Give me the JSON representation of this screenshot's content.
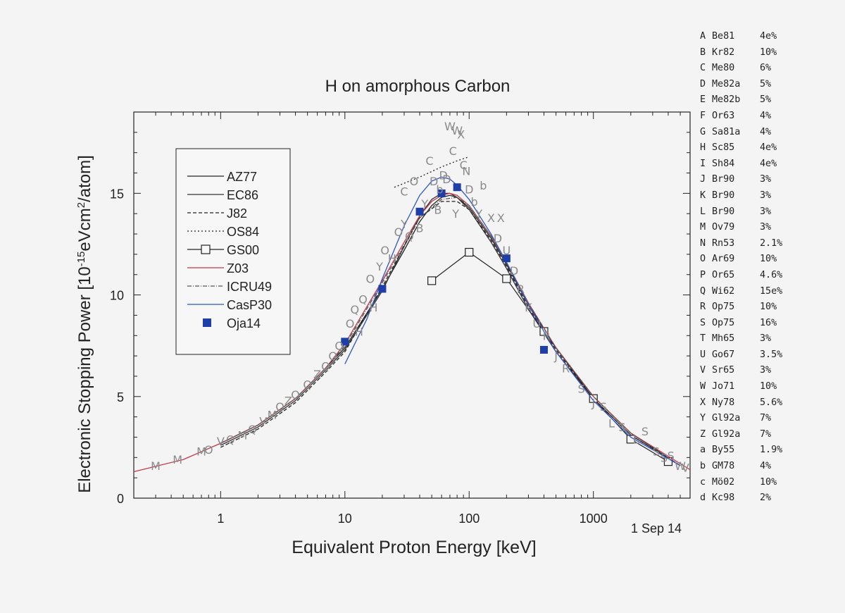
{
  "chart_data": {
    "type": "line",
    "title": "H on amorphous Carbon",
    "xlabel": "Equivalent Proton Energy [keV]",
    "ylabel_parts": [
      "Electronic Stopping Power [10",
      "-15",
      "eVcm",
      "2",
      "/atom]"
    ],
    "date_label": "1 Sep 14",
    "x_scale": "log",
    "xlim": [
      0.2,
      6000
    ],
    "ylim": [
      0,
      19
    ],
    "x_ticks": [
      1,
      10,
      100,
      1000
    ],
    "x_tick_labels": [
      "1",
      "10",
      "100",
      "1000"
    ],
    "y_ticks": [
      0,
      5,
      10,
      15
    ],
    "y_tick_labels": [
      "0",
      "5",
      "10",
      "15"
    ],
    "grid": false,
    "legend_position": "top-left",
    "series": [
      {
        "name": "AZ77",
        "style": "solid",
        "color": "#222222",
        "x": [
          1,
          2,
          4,
          7,
          10,
          20,
          30,
          40,
          50,
          60,
          70,
          80,
          100,
          150,
          200,
          300,
          500,
          1000,
          2000,
          5000
        ],
        "y": [
          2.7,
          3.6,
          4.9,
          6.4,
          7.4,
          10.3,
          12.2,
          13.6,
          14.4,
          14.8,
          14.9,
          14.8,
          14.3,
          12.8,
          11.5,
          9.5,
          7.4,
          5.0,
          3.2,
          1.6
        ]
      },
      {
        "name": "EC86",
        "style": "solid",
        "color": "#333333",
        "x": [
          1,
          2,
          4,
          7,
          10,
          20,
          30,
          40,
          50,
          60,
          70,
          80,
          100,
          150,
          200,
          300,
          500,
          1000,
          2000,
          5000
        ],
        "y": [
          2.6,
          3.5,
          4.8,
          6.3,
          7.3,
          10.2,
          12.4,
          13.9,
          14.7,
          15.0,
          15.0,
          14.8,
          14.2,
          12.6,
          11.3,
          9.3,
          7.2,
          4.9,
          3.1,
          1.6
        ]
      },
      {
        "name": "J82",
        "style": "dashed",
        "color": "#222222",
        "x": [
          1,
          2,
          4,
          7,
          10,
          20,
          40,
          60,
          80,
          100,
          150,
          200,
          300,
          500,
          1000,
          2000,
          5000
        ],
        "y": [
          2.5,
          3.4,
          4.7,
          6.2,
          7.2,
          10.4,
          13.8,
          14.6,
          14.6,
          14.2,
          12.7,
          11.4,
          9.4,
          7.3,
          4.9,
          3.1,
          1.6
        ]
      },
      {
        "name": "OS84",
        "style": "dotted",
        "color": "#222222",
        "x": [
          25,
          40,
          60,
          80,
          100
        ],
        "y": [
          15.3,
          15.8,
          16.3,
          16.6,
          16.8
        ]
      },
      {
        "name": "GS00",
        "style": "open-square",
        "color": "#222222",
        "x": [
          50,
          100,
          200,
          400,
          1000,
          2000,
          4000
        ],
        "y": [
          10.7,
          12.1,
          10.8,
          8.2,
          4.9,
          2.9,
          1.8
        ]
      },
      {
        "name": "Z03",
        "style": "solid",
        "color": "#c0394b",
        "x": [
          0.2,
          0.5,
          1,
          2,
          4,
          7,
          10,
          20,
          30,
          40,
          50,
          60,
          70,
          80,
          100,
          150,
          200,
          300,
          500,
          1000,
          2000,
          6000
        ],
        "y": [
          1.3,
          1.9,
          2.7,
          3.6,
          4.9,
          6.4,
          7.6,
          10.7,
          12.6,
          13.9,
          14.6,
          14.9,
          15.0,
          14.9,
          14.4,
          12.9,
          11.6,
          9.6,
          7.4,
          5.0,
          3.2,
          1.4
        ]
      },
      {
        "name": "ICRU49",
        "style": "dashdot",
        "color": "#555555",
        "x": [
          1,
          2,
          4,
          7,
          10,
          20,
          40,
          60,
          80,
          100,
          150,
          200,
          300,
          500,
          1000,
          2000,
          5000
        ],
        "y": [
          2.7,
          3.6,
          4.9,
          6.4,
          7.5,
          10.6,
          13.8,
          14.7,
          14.8,
          14.4,
          12.9,
          11.6,
          9.6,
          7.4,
          5.0,
          3.2,
          1.6
        ]
      },
      {
        "name": "CasP30",
        "style": "solid",
        "color": "#2f55c4",
        "x": [
          10,
          15,
          20,
          30,
          40,
          50,
          60,
          70,
          80,
          100,
          150,
          200,
          300,
          500,
          1000,
          2000,
          5000
        ],
        "y": [
          6.6,
          8.8,
          10.8,
          13.4,
          14.9,
          15.6,
          15.8,
          15.7,
          15.4,
          14.7,
          13.0,
          11.6,
          9.5,
          7.2,
          4.8,
          3.0,
          1.6
        ]
      },
      {
        "name": "Oja14",
        "style": "filled-square",
        "color": "#1f3fa8",
        "x": [
          10,
          20,
          40,
          60,
          80,
          200,
          400
        ],
        "y": [
          7.7,
          10.3,
          14.1,
          15.0,
          15.3,
          11.8,
          7.3
        ]
      }
    ],
    "scatter_letters": [
      {
        "l": "M",
        "x": 0.3,
        "y": 1.6
      },
      {
        "l": "M",
        "x": 0.45,
        "y": 1.9
      },
      {
        "l": "M",
        "x": 0.7,
        "y": 2.3
      },
      {
        "l": "O",
        "x": 0.8,
        "y": 2.4
      },
      {
        "l": "V",
        "x": 1.0,
        "y": 2.8
      },
      {
        "l": "Q",
        "x": 1.2,
        "y": 2.9
      },
      {
        "l": "M",
        "x": 1.5,
        "y": 3.1
      },
      {
        "l": "Q",
        "x": 1.8,
        "y": 3.4
      },
      {
        "l": "V",
        "x": 2.2,
        "y": 3.8
      },
      {
        "l": "M",
        "x": 2.6,
        "y": 4.1
      },
      {
        "l": "Q",
        "x": 3.0,
        "y": 4.5
      },
      {
        "l": "Z",
        "x": 3.5,
        "y": 4.8
      },
      {
        "l": "O",
        "x": 4.0,
        "y": 5.1
      },
      {
        "l": "Q",
        "x": 5.0,
        "y": 5.6
      },
      {
        "l": "Z",
        "x": 6.0,
        "y": 6.1
      },
      {
        "l": "Q",
        "x": 7.0,
        "y": 6.5
      },
      {
        "l": "O",
        "x": 8.0,
        "y": 7.0
      },
      {
        "l": "Q",
        "x": 9.0,
        "y": 7.5
      },
      {
        "l": "O",
        "x": 11.0,
        "y": 8.6
      },
      {
        "l": "Q",
        "x": 12.0,
        "y": 9.3
      },
      {
        "l": "H",
        "x": 13.0,
        "y": 8.2
      },
      {
        "l": "Q",
        "x": 14.0,
        "y": 9.8
      },
      {
        "l": "O",
        "x": 16.0,
        "y": 10.8
      },
      {
        "l": "H",
        "x": 17.0,
        "y": 9.4
      },
      {
        "l": "Y",
        "x": 19.0,
        "y": 11.4
      },
      {
        "l": "O",
        "x": 21.0,
        "y": 12.2
      },
      {
        "l": "H",
        "x": 24.0,
        "y": 11.8
      },
      {
        "l": "O",
        "x": 27.0,
        "y": 13.1
      },
      {
        "l": "Y",
        "x": 30.0,
        "y": 13.5
      },
      {
        "l": "C",
        "x": 30.0,
        "y": 15.1
      },
      {
        "l": "Q",
        "x": 33.0,
        "y": 12.9
      },
      {
        "l": "O",
        "x": 36.0,
        "y": 15.6
      },
      {
        "l": "B",
        "x": 40.0,
        "y": 13.3
      },
      {
        "l": "Y",
        "x": 44.0,
        "y": 14.5
      },
      {
        "l": "C",
        "x": 48.0,
        "y": 16.6
      },
      {
        "l": "D",
        "x": 52.0,
        "y": 15.6
      },
      {
        "l": "B",
        "x": 56.0,
        "y": 14.2
      },
      {
        "l": "b",
        "x": 58.0,
        "y": 15.2
      },
      {
        "l": "D",
        "x": 62.0,
        "y": 15.9
      },
      {
        "l": "D",
        "x": 66.0,
        "y": 15.7
      },
      {
        "l": "W",
        "x": 70.0,
        "y": 18.3
      },
      {
        "l": "C",
        "x": 74.0,
        "y": 17.1
      },
      {
        "l": "Y",
        "x": 78.0,
        "y": 14.0
      },
      {
        "l": "W",
        "x": 80.0,
        "y": 18.1
      },
      {
        "l": "X",
        "x": 86.0,
        "y": 17.9
      },
      {
        "l": "C",
        "x": 90.0,
        "y": 16.4
      },
      {
        "l": "N",
        "x": 95.0,
        "y": 16.1
      },
      {
        "l": "D",
        "x": 100.0,
        "y": 15.2
      },
      {
        "l": "b",
        "x": 110.0,
        "y": 14.6
      },
      {
        "l": "Y",
        "x": 120.0,
        "y": 14.0
      },
      {
        "l": "b",
        "x": 130.0,
        "y": 15.4
      },
      {
        "l": "X",
        "x": 150.0,
        "y": 13.8
      },
      {
        "l": "D",
        "x": 170.0,
        "y": 12.8
      },
      {
        "l": "X",
        "x": 180.0,
        "y": 13.8
      },
      {
        "l": "U",
        "x": 200.0,
        "y": 12.2
      },
      {
        "l": "D",
        "x": 230.0,
        "y": 11.2
      },
      {
        "l": "R",
        "x": 260.0,
        "y": 10.3
      },
      {
        "l": "K",
        "x": 300.0,
        "y": 9.4
      },
      {
        "l": "U",
        "x": 350.0,
        "y": 8.6
      },
      {
        "l": "R",
        "x": 420.0,
        "y": 8.0
      },
      {
        "l": "J",
        "x": 500.0,
        "y": 7.0
      },
      {
        "l": "R",
        "x": 600.0,
        "y": 6.4
      },
      {
        "l": "S",
        "x": 800.0,
        "y": 5.4
      },
      {
        "l": "J",
        "x": 1000.0,
        "y": 4.7
      },
      {
        "l": "S",
        "x": 1200.0,
        "y": 4.5
      },
      {
        "l": "L",
        "x": 1400.0,
        "y": 3.7
      },
      {
        "l": "S",
        "x": 1700.0,
        "y": 3.5
      },
      {
        "l": "L",
        "x": 2200.0,
        "y": 2.9
      },
      {
        "l": "S",
        "x": 2600.0,
        "y": 3.3
      },
      {
        "l": "S",
        "x": 3200.0,
        "y": 2.3
      },
      {
        "l": "S",
        "x": 3700.0,
        "y": 2.0
      },
      {
        "l": "S",
        "x": 4200.0,
        "y": 2.1
      },
      {
        "l": "W",
        "x": 5000.0,
        "y": 1.6
      },
      {
        "l": "V",
        "x": 5500.0,
        "y": 1.5
      }
    ]
  },
  "reference_list": [
    {
      "letter": "A",
      "code": "Be81",
      "error": "4e%"
    },
    {
      "letter": "B",
      "code": "Kr82",
      "error": "10%"
    },
    {
      "letter": "C",
      "code": "Me80",
      "error": "6%"
    },
    {
      "letter": "D",
      "code": "Me82a",
      "error": "5%"
    },
    {
      "letter": "E",
      "code": "Me82b",
      "error": "5%"
    },
    {
      "letter": "F",
      "code": "Or63",
      "error": "4%"
    },
    {
      "letter": "G",
      "code": "Sa81a",
      "error": "4%"
    },
    {
      "letter": "H",
      "code": "Sc85",
      "error": "4e%"
    },
    {
      "letter": "I",
      "code": "Sh84",
      "error": "4e%"
    },
    {
      "letter": "J",
      "code": "Br90",
      "error": "3%"
    },
    {
      "letter": "K",
      "code": "Br90",
      "error": "3%"
    },
    {
      "letter": "L",
      "code": "Br90",
      "error": "3%"
    },
    {
      "letter": "M",
      "code": "Ov79",
      "error": "3%"
    },
    {
      "letter": "N",
      "code": "Rn53",
      "error": "2.1%"
    },
    {
      "letter": "O",
      "code": "Ar69",
      "error": "10%"
    },
    {
      "letter": "P",
      "code": "Or65",
      "error": "4.6%"
    },
    {
      "letter": "Q",
      "code": "Wi62",
      "error": "15e%"
    },
    {
      "letter": "R",
      "code": "Op75",
      "error": "10%"
    },
    {
      "letter": "S",
      "code": "Op75",
      "error": "16%"
    },
    {
      "letter": "T",
      "code": "Mh65",
      "error": "3%"
    },
    {
      "letter": "U",
      "code": "Go67",
      "error": "3.5%"
    },
    {
      "letter": "V",
      "code": "Sr65",
      "error": "3%"
    },
    {
      "letter": "W",
      "code": "Jo71",
      "error": "10%"
    },
    {
      "letter": "X",
      "code": "Ny78",
      "error": "5.6%"
    },
    {
      "letter": "Y",
      "code": "Gl92a",
      "error": "7%"
    },
    {
      "letter": "Z",
      "code": "Gl92a",
      "error": "7%"
    },
    {
      "letter": "a",
      "code": "By55",
      "error": "1.9%"
    },
    {
      "letter": "b",
      "code": "GM78",
      "error": "4%"
    },
    {
      "letter": "c",
      "code": "Mö02",
      "error": "10%"
    },
    {
      "letter": "d",
      "code": "Kc98",
      "error": "2%"
    }
  ]
}
